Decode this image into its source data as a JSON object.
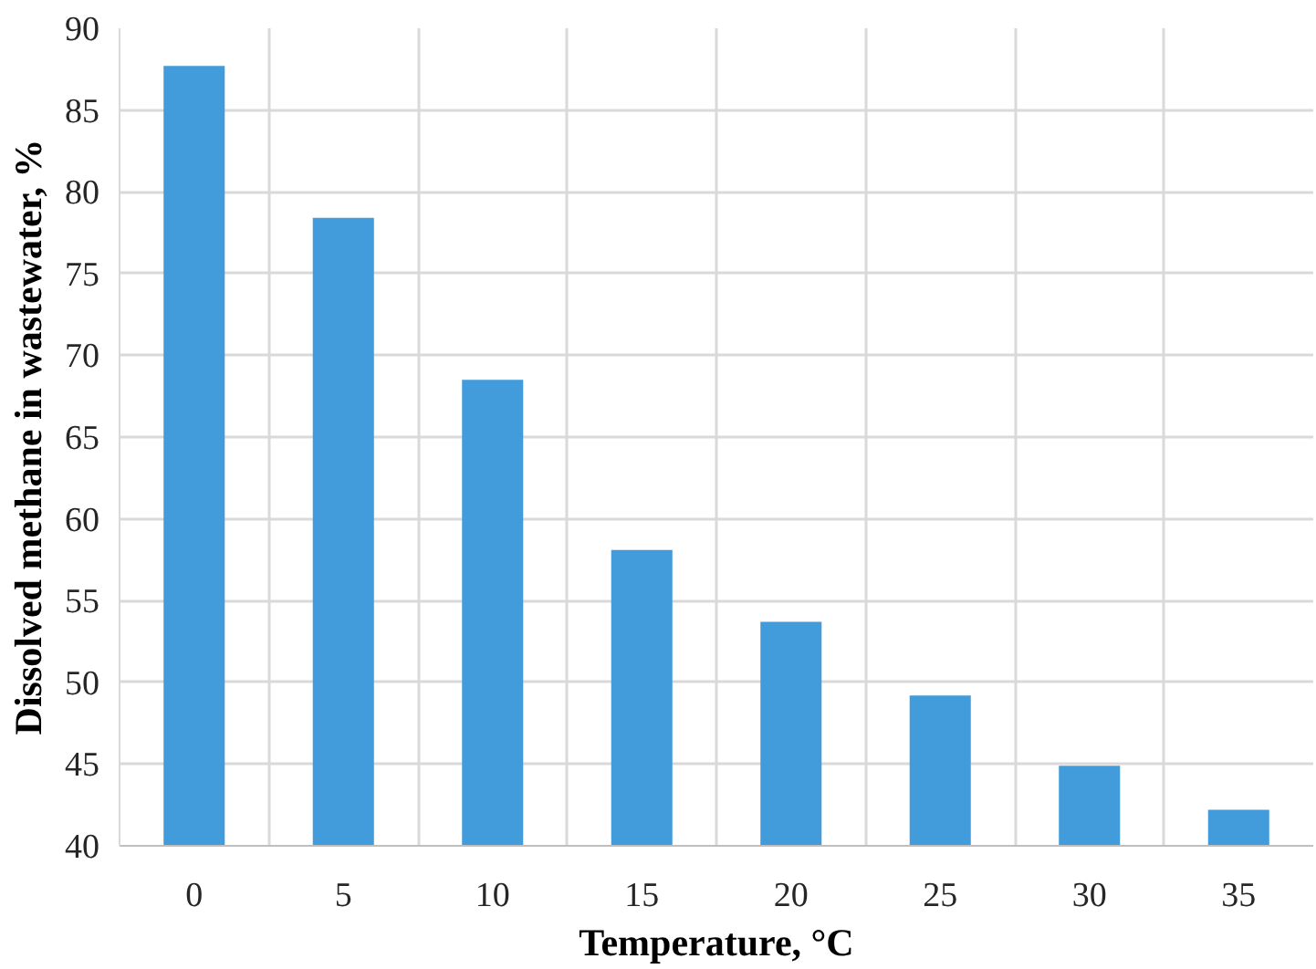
{
  "chart_data": {
    "type": "bar",
    "xlabel": "Temperature, °C",
    "ylabel": "Dissolved methane in wastewater, %",
    "categories": [
      "0",
      "5",
      "10",
      "15",
      "20",
      "25",
      "30",
      "35"
    ],
    "values": [
      87.7,
      78.4,
      68.5,
      58.1,
      53.7,
      49.2,
      44.9,
      42.2
    ],
    "color": "#429cdb",
    "ylim": [
      40,
      90
    ],
    "yticks": [
      40,
      45,
      50,
      55,
      60,
      65,
      70,
      75,
      80,
      85,
      90
    ],
    "grid": true
  }
}
